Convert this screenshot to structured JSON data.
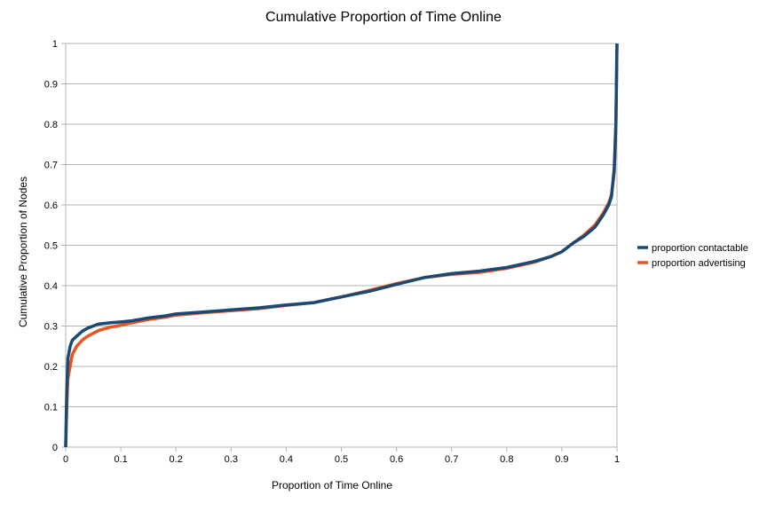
{
  "chart_data": {
    "type": "line",
    "title": "Cumulative Proportion of Time Online",
    "xlabel": "Proportion of Time Online",
    "ylabel": "Cumulative Proportion of Nodes",
    "xlim": [
      0,
      1
    ],
    "ylim": [
      0,
      1
    ],
    "x_ticks": [
      "0",
      "0.1",
      "0.2",
      "0.3",
      "0.4",
      "0.5",
      "0.6",
      "0.7",
      "0.8",
      "0.9",
      "1"
    ],
    "y_ticks": [
      "0",
      "0.1",
      "0.2",
      "0.3",
      "0.4",
      "0.5",
      "0.6",
      "0.7",
      "0.8",
      "0.9",
      "1"
    ],
    "grid": "horizontal",
    "legend_position": "right",
    "series": [
      {
        "name": "proportion advertising",
        "color": "#e8531f",
        "points": [
          [
            0,
            0
          ],
          [
            0.002,
            0.1
          ],
          [
            0.004,
            0.17
          ],
          [
            0.008,
            0.2
          ],
          [
            0.012,
            0.23
          ],
          [
            0.02,
            0.25
          ],
          [
            0.03,
            0.265
          ],
          [
            0.04,
            0.275
          ],
          [
            0.05,
            0.282
          ],
          [
            0.06,
            0.289
          ],
          [
            0.07,
            0.293
          ],
          [
            0.08,
            0.297
          ],
          [
            0.1,
            0.302
          ],
          [
            0.12,
            0.308
          ],
          [
            0.15,
            0.316
          ],
          [
            0.18,
            0.322
          ],
          [
            0.2,
            0.327
          ],
          [
            0.25,
            0.333
          ],
          [
            0.3,
            0.338
          ],
          [
            0.35,
            0.343
          ],
          [
            0.4,
            0.351
          ],
          [
            0.45,
            0.358
          ],
          [
            0.5,
            0.372
          ],
          [
            0.55,
            0.388
          ],
          [
            0.6,
            0.405
          ],
          [
            0.65,
            0.42
          ],
          [
            0.7,
            0.428
          ],
          [
            0.75,
            0.433
          ],
          [
            0.8,
            0.443
          ],
          [
            0.85,
            0.458
          ],
          [
            0.88,
            0.472
          ],
          [
            0.9,
            0.484
          ],
          [
            0.92,
            0.505
          ],
          [
            0.94,
            0.525
          ],
          [
            0.96,
            0.55
          ],
          [
            0.975,
            0.58
          ],
          [
            0.985,
            0.605
          ],
          [
            0.99,
            0.625
          ],
          [
            0.995,
            0.68
          ],
          [
            0.998,
            0.8
          ],
          [
            1,
            1
          ]
        ]
      },
      {
        "name": "proportion contactable",
        "color": "#1a4a74",
        "points": [
          [
            0,
            0
          ],
          [
            0.002,
            0.14
          ],
          [
            0.004,
            0.22
          ],
          [
            0.008,
            0.25
          ],
          [
            0.012,
            0.265
          ],
          [
            0.02,
            0.275
          ],
          [
            0.03,
            0.287
          ],
          [
            0.04,
            0.295
          ],
          [
            0.05,
            0.3
          ],
          [
            0.06,
            0.305
          ],
          [
            0.08,
            0.308
          ],
          [
            0.1,
            0.31
          ],
          [
            0.12,
            0.313
          ],
          [
            0.15,
            0.32
          ],
          [
            0.18,
            0.325
          ],
          [
            0.2,
            0.33
          ],
          [
            0.25,
            0.335
          ],
          [
            0.3,
            0.34
          ],
          [
            0.35,
            0.345
          ],
          [
            0.4,
            0.352
          ],
          [
            0.45,
            0.358
          ],
          [
            0.5,
            0.372
          ],
          [
            0.55,
            0.386
          ],
          [
            0.6,
            0.403
          ],
          [
            0.65,
            0.42
          ],
          [
            0.7,
            0.43
          ],
          [
            0.75,
            0.436
          ],
          [
            0.8,
            0.445
          ],
          [
            0.85,
            0.46
          ],
          [
            0.88,
            0.472
          ],
          [
            0.9,
            0.484
          ],
          [
            0.92,
            0.505
          ],
          [
            0.94,
            0.522
          ],
          [
            0.96,
            0.545
          ],
          [
            0.975,
            0.575
          ],
          [
            0.985,
            0.6
          ],
          [
            0.99,
            0.62
          ],
          [
            0.995,
            0.69
          ],
          [
            0.998,
            0.8
          ],
          [
            1,
            1
          ]
        ]
      }
    ]
  }
}
